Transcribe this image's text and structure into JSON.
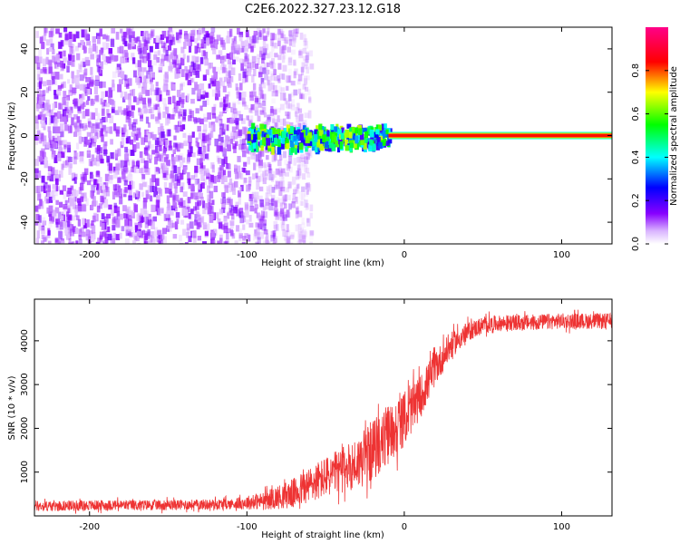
{
  "title": "C2E6.2022.327.23.12.G18",
  "chart_data": [
    {
      "type": "heatmap",
      "xlabel": "Height of straight line (km)",
      "ylabel": "Frequency (Hz)",
      "xlim": [
        -235,
        132
      ],
      "ylim": [
        -50,
        50
      ],
      "xticks": [
        -200,
        -100,
        0,
        100
      ],
      "yticks": [
        -40,
        -20,
        0,
        20,
        40
      ],
      "colorbar": {
        "label": "Normalized spectral amplitude",
        "range": [
          0.0,
          1.0
        ],
        "ticks": [
          0.0,
          0.2,
          0.4,
          0.6,
          0.8
        ],
        "colormap": [
          "#ffffff",
          "#8800ff",
          "#0000ff",
          "#00ffff",
          "#00ff00",
          "#ffff00",
          "#ff0000",
          "#ff0088"
        ]
      },
      "regions": [
        {
          "description": "diffuse purple noise",
          "x": [
            -235,
            -60
          ],
          "frequency": [
            -50,
            50
          ],
          "amplitude": [
            0.0,
            0.15
          ]
        },
        {
          "description": "near-zero frequency band with green/cyan core",
          "x": [
            -100,
            -10
          ],
          "frequency": [
            -5,
            5
          ],
          "amplitude": [
            0.2,
            0.7
          ]
        },
        {
          "description": "strong carrier line",
          "x": [
            -10,
            132
          ],
          "frequency": [
            -1,
            1
          ],
          "amplitude": [
            0.8,
            1.0
          ]
        }
      ]
    },
    {
      "type": "line",
      "xlabel": "Height of straight line (km)",
      "ylabel": "SNR (10 * v/v)",
      "xlim": [
        -235,
        132
      ],
      "ylim": [
        0,
        4950
      ],
      "xticks": [
        -200,
        -100,
        0,
        100
      ],
      "yticks": [
        1000,
        2000,
        3000,
        4000
      ],
      "color": "#ee3333",
      "series": [
        {
          "x": [
            -235,
            -200,
            -150,
            -110,
            -90,
            -70,
            -55,
            -40,
            -30,
            -20,
            -10,
            0,
            10,
            20,
            30,
            40,
            50,
            60,
            80,
            100,
            132
          ],
          "y": [
            220,
            240,
            250,
            270,
            340,
            520,
            800,
            1050,
            1200,
            1500,
            1850,
            2200,
            2700,
            3400,
            3900,
            4200,
            4350,
            4400,
            4420,
            4450,
            4450
          ],
          "noise": [
            120,
            120,
            120,
            120,
            200,
            350,
            450,
            500,
            600,
            700,
            700,
            600,
            500,
            400,
            300,
            220,
            200,
            180,
            180,
            180,
            180
          ]
        }
      ]
    }
  ]
}
